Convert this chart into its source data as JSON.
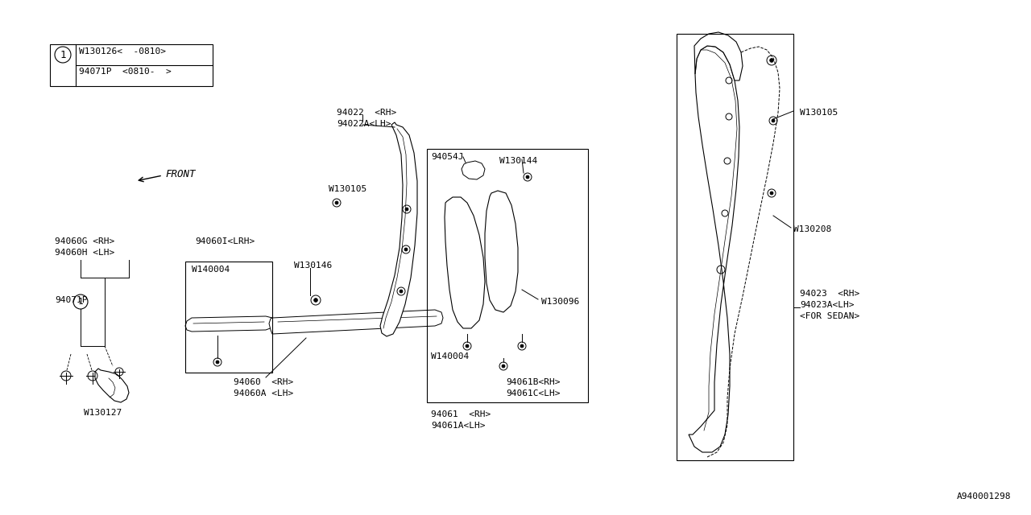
{
  "bg": "#ffffff",
  "lc": "#000000",
  "fs": 7.5,
  "diagram_id": "A940001298",
  "labels": {
    "leg1": "W130126<  -0810>",
    "leg2": "94071P  <0810-  >",
    "front": "FRONT",
    "l94060G": "94060G <RH>",
    "l94060H": "94060H <LH>",
    "l94060I": "94060I<LRH>",
    "lW140004L": "W140004",
    "lW140004R": "W140004",
    "lW130146": "W130146",
    "l94071P": "94071P",
    "lW130127": "W130127",
    "l94060": "94060  <RH>",
    "l94060A": "94060A <LH>",
    "l94022": "94022  <RH>",
    "l94022A": "94022A<LH>",
    "lW130105C": "W130105",
    "l94054J": "94054J",
    "lW130144": "W130144",
    "lW130096": "W130096",
    "l94061": "94061  <RH>",
    "l94061A": "94061A<LH>",
    "l94061B": "94061B<RH>",
    "l94061C": "94061C<LH>",
    "l94023": "94023  <RH>",
    "l94023A": "94023A<LH>",
    "lforsedan": "<FOR SEDAN>",
    "lW130105R": "W130105",
    "lW130208": "W130208"
  }
}
